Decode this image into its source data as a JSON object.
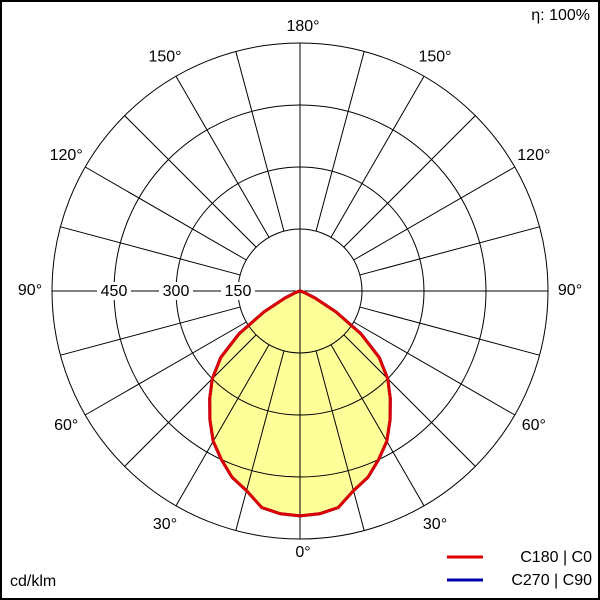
{
  "chart_data": {
    "type": "polar",
    "efficiency_label": "η: 100%",
    "unit_label": "cd/klm",
    "rlim": [
      0,
      600
    ],
    "rticks": [
      150,
      300,
      450
    ],
    "angle_grid_step": 15,
    "angle_ticks": [
      {
        "value": 0,
        "label": "0°"
      },
      {
        "value": 30,
        "label": "30°"
      },
      {
        "value": 60,
        "label": "60°"
      },
      {
        "value": 90,
        "label": "90°"
      },
      {
        "value": 120,
        "label": "120°"
      },
      {
        "value": 150,
        "label": "150°"
      },
      {
        "value": 180,
        "label": "180°"
      }
    ],
    "angles": [
      0,
      5,
      10,
      15,
      20,
      25,
      30,
      35,
      40,
      45,
      50,
      55,
      60,
      65,
      70,
      75,
      80,
      85,
      90
    ],
    "fill_color": "#ffff99",
    "series": [
      {
        "name": "C270 | C90",
        "color": "#0000aa",
        "values": [
          544,
          541,
          532,
          500,
          480,
          450,
          420,
          380,
          340,
          300,
          250,
          180,
          100,
          40,
          12,
          3,
          0,
          0,
          0
        ]
      },
      {
        "name": "C180 | C0",
        "color": "#dd0000",
        "values": [
          544,
          541,
          532,
          500,
          480,
          450,
          420,
          380,
          340,
          300,
          250,
          180,
          100,
          40,
          12,
          3,
          0,
          0,
          0
        ]
      }
    ]
  }
}
